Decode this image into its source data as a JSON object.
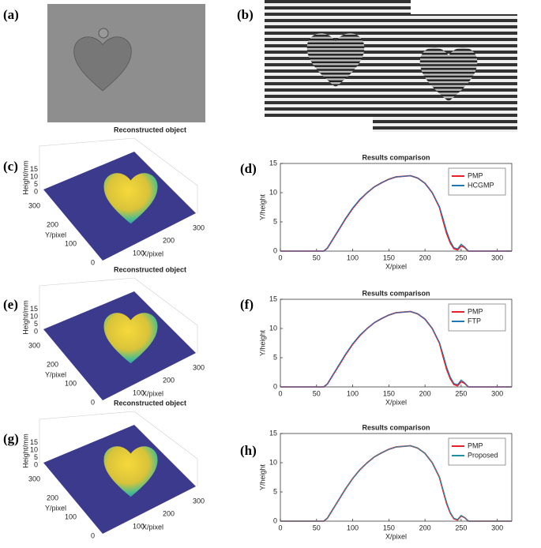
{
  "panel_labels": [
    "(a)",
    "(b)",
    "(c)",
    "(d)",
    "(e)",
    "(f)",
    "(g)",
    "(h)"
  ],
  "surface_plots": [
    {
      "title": "Reconstructed object",
      "z_label": "Height/mm",
      "y_label": "Y/pixel",
      "x_label": "X/pixel",
      "z_ticks": [
        0,
        5,
        10,
        15
      ],
      "y_ticks": [
        0,
        100,
        200,
        300
      ],
      "x_ticks": [
        100,
        200,
        300
      ]
    },
    {
      "title": "Reconstructed object",
      "z_label": "Height/mm",
      "y_label": "Y/pixel",
      "x_label": "X/pixel",
      "z_ticks": [
        0,
        5,
        10,
        15
      ],
      "y_ticks": [
        0,
        100,
        200,
        300
      ],
      "x_ticks": [
        100,
        200,
        300
      ]
    },
    {
      "title": "Reconstructed object",
      "z_label": "Height/mm",
      "y_label": "Y/pixel",
      "x_label": "X/pixel",
      "z_ticks": [
        0,
        5,
        10,
        15
      ],
      "y_ticks": [
        0,
        100,
        200,
        300
      ],
      "x_ticks": [
        100,
        200,
        300
      ]
    }
  ],
  "chart_data": [
    {
      "type": "line",
      "title": "Results comparison",
      "x_label": "X/pixel",
      "y_label": "Y/height",
      "x": [
        0,
        60,
        65,
        70,
        80,
        90,
        100,
        110,
        120,
        130,
        140,
        150,
        160,
        170,
        180,
        190,
        200,
        210,
        220,
        225,
        230,
        235,
        240,
        245,
        250,
        255,
        260,
        270,
        320
      ],
      "series": [
        {
          "name": "PMP",
          "color": "#e8202a",
          "values": [
            0,
            0,
            0.5,
            1.5,
            3.5,
            5.5,
            7.3,
            8.8,
            10,
            11,
            11.7,
            12.3,
            12.7,
            12.8,
            12.9,
            12.5,
            11.6,
            10,
            7.5,
            5.2,
            3.0,
            1.4,
            0.4,
            0.2,
            0.9,
            0.6,
            0,
            0,
            0
          ]
        },
        {
          "name": "HCGMP",
          "color": "#1f77b4",
          "values": [
            0,
            0,
            0.5,
            1.5,
            3.5,
            5.6,
            7.4,
            8.9,
            10,
            11,
            11.7,
            12.3,
            12.7,
            12.8,
            12.9,
            12.5,
            11.6,
            10,
            7.6,
            5.6,
            3.4,
            1.7,
            0.6,
            0.4,
            1.2,
            0.7,
            0,
            0,
            0
          ]
        }
      ],
      "xlim": [
        0,
        320
      ],
      "ylim": [
        0,
        15
      ],
      "xticks": [
        0,
        50,
        100,
        150,
        200,
        250,
        300
      ],
      "yticks": [
        0,
        5,
        10,
        15
      ],
      "legend": "upper right"
    },
    {
      "type": "line",
      "title": "Results comparison",
      "x_label": "X/pixel",
      "y_label": "Y/height",
      "x": [
        0,
        60,
        65,
        70,
        80,
        90,
        100,
        110,
        120,
        130,
        140,
        150,
        160,
        170,
        180,
        190,
        200,
        210,
        220,
        225,
        230,
        235,
        240,
        245,
        250,
        255,
        260,
        270,
        320
      ],
      "series": [
        {
          "name": "PMP",
          "color": "#e8202a",
          "values": [
            0,
            0,
            0.5,
            1.5,
            3.5,
            5.5,
            7.3,
            8.8,
            10,
            11,
            11.7,
            12.3,
            12.7,
            12.8,
            12.9,
            12.5,
            11.6,
            10,
            7.5,
            5.2,
            3.0,
            1.4,
            0.4,
            0.2,
            0.9,
            0.6,
            0,
            0,
            0
          ]
        },
        {
          "name": "FTP",
          "color": "#1f77b4",
          "values": [
            0,
            0,
            0.5,
            1.5,
            3.6,
            5.6,
            7.4,
            8.9,
            10,
            11,
            11.7,
            12.3,
            12.7,
            12.8,
            12.9,
            12.5,
            11.6,
            10,
            7.6,
            5.6,
            3.4,
            1.7,
            0.6,
            0.4,
            1.2,
            0.7,
            0,
            0,
            0
          ]
        }
      ],
      "xlim": [
        0,
        320
      ],
      "ylim": [
        0,
        15
      ],
      "xticks": [
        0,
        50,
        100,
        150,
        200,
        250,
        300
      ],
      "yticks": [
        0,
        5,
        10,
        15
      ],
      "legend": "upper right"
    },
    {
      "type": "line",
      "title": "Results comparison",
      "x_label": "X/pixel",
      "y_label": "Y/height",
      "x": [
        0,
        60,
        65,
        70,
        80,
        90,
        100,
        110,
        120,
        130,
        140,
        150,
        160,
        170,
        180,
        190,
        200,
        210,
        220,
        225,
        230,
        235,
        240,
        245,
        250,
        255,
        260,
        270,
        320
      ],
      "series": [
        {
          "name": "PMP",
          "color": "#e8202a",
          "values": [
            0,
            0,
            0.5,
            1.5,
            3.5,
            5.5,
            7.3,
            8.8,
            10,
            11,
            11.7,
            12.3,
            12.7,
            12.8,
            12.9,
            12.5,
            11.6,
            10,
            7.5,
            5.2,
            3.0,
            1.4,
            0.4,
            0.2,
            0.9,
            0.6,
            0,
            0,
            0
          ]
        },
        {
          "name": "Proposed",
          "color": "#1f8fa4",
          "values": [
            0,
            0,
            0.5,
            1.5,
            3.5,
            5.5,
            7.3,
            8.8,
            10,
            11,
            11.7,
            12.3,
            12.7,
            12.8,
            12.9,
            12.5,
            11.6,
            10,
            7.5,
            5.4,
            3.2,
            1.5,
            0.5,
            0.3,
            1.0,
            0.6,
            0,
            0,
            0
          ]
        }
      ],
      "xlim": [
        0,
        320
      ],
      "ylim": [
        0,
        15
      ],
      "xticks": [
        0,
        50,
        100,
        150,
        200,
        250,
        300
      ],
      "yticks": [
        0,
        5,
        10,
        15
      ],
      "legend": "upper right"
    }
  ]
}
